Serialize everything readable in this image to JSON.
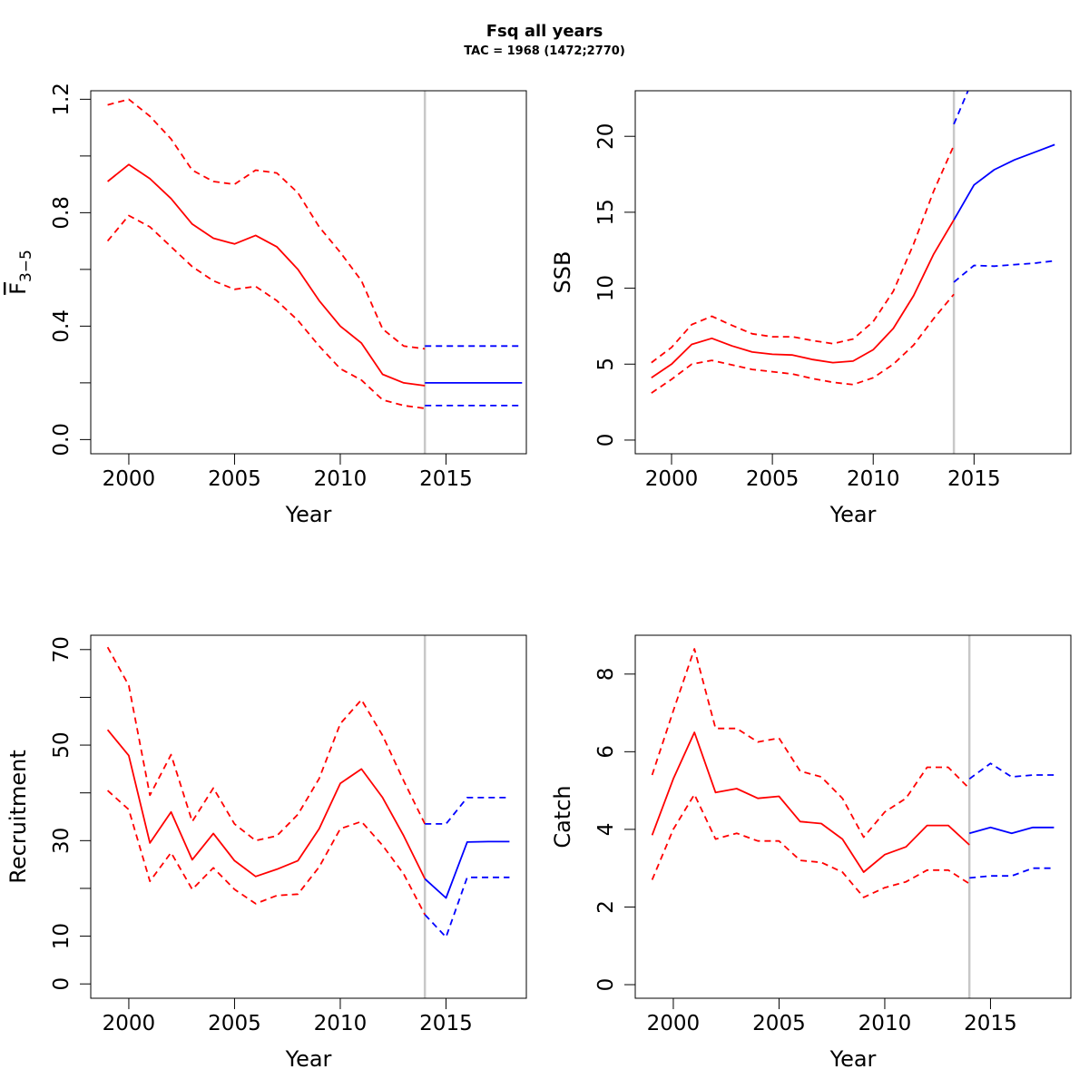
{
  "title": "Fsq all years",
  "subtitle": "TAC = 1968 (1472;2770)",
  "colors": {
    "estimate": "#ff0000",
    "forecast": "#0000ff",
    "divider": "#c8c8c8",
    "frame": "#000000"
  },
  "chart_data": [
    {
      "type": "line",
      "xlabel": "Year",
      "ylabel": "F",
      "ylabel_subscript": "3−5",
      "ylabel_overline": true,
      "xlim": [
        1998.2,
        2018.8
      ],
      "ylim": [
        -0.05,
        1.23
      ],
      "xticks": [
        2000,
        2005,
        2010,
        2015
      ],
      "yticks": [
        0.0,
        0.4,
        0.8,
        1.2
      ],
      "ytick_labels": [
        "0.0",
        "0.4",
        "0.8",
        "1.2"
      ],
      "ytick_minor": [
        0.2,
        0.6,
        1.0
      ],
      "divider_x": 2014,
      "grid": false,
      "series": [
        {
          "role": "estimate",
          "style": "solid",
          "x": [
            1999,
            2000,
            2001,
            2002,
            2003,
            2004,
            2005,
            2006,
            2007,
            2008,
            2009,
            2010,
            2011,
            2012,
            2013,
            2014
          ],
          "values": [
            0.91,
            0.97,
            0.92,
            0.85,
            0.76,
            0.71,
            0.69,
            0.72,
            0.68,
            0.6,
            0.49,
            0.4,
            0.34,
            0.23,
            0.2,
            0.19
          ]
        },
        {
          "role": "estimate",
          "style": "dashed",
          "x": [
            1999,
            2000,
            2001,
            2002,
            2003,
            2004,
            2005,
            2006,
            2007,
            2008,
            2009,
            2010,
            2011,
            2012,
            2013,
            2014
          ],
          "values": [
            1.18,
            1.2,
            1.14,
            1.06,
            0.95,
            0.91,
            0.9,
            0.95,
            0.94,
            0.87,
            0.75,
            0.66,
            0.56,
            0.39,
            0.33,
            0.32
          ]
        },
        {
          "role": "estimate",
          "style": "dashed",
          "x": [
            1999,
            2000,
            2001,
            2002,
            2003,
            2004,
            2005,
            2006,
            2007,
            2008,
            2009,
            2010,
            2011,
            2012,
            2013,
            2014
          ],
          "values": [
            0.7,
            0.79,
            0.75,
            0.68,
            0.61,
            0.56,
            0.53,
            0.54,
            0.49,
            0.42,
            0.33,
            0.25,
            0.21,
            0.14,
            0.12,
            0.11
          ]
        },
        {
          "role": "forecast",
          "style": "solid",
          "x": [
            2014,
            2018.6
          ],
          "values": [
            0.2,
            0.2
          ]
        },
        {
          "role": "forecast",
          "style": "dashed",
          "x": [
            2014,
            2018.6
          ],
          "values": [
            0.33,
            0.33
          ]
        },
        {
          "role": "forecast",
          "style": "dashed",
          "x": [
            2014,
            2018.6
          ],
          "values": [
            0.12,
            0.12
          ]
        }
      ]
    },
    {
      "type": "line",
      "xlabel": "Year",
      "ylabel": "SSB",
      "xlim": [
        1998.2,
        2019.8
      ],
      "ylim": [
        -0.9,
        23.0
      ],
      "xticks": [
        2000,
        2005,
        2010,
        2015
      ],
      "yticks": [
        0,
        5,
        10,
        15,
        20
      ],
      "ytick_labels": [
        "0",
        "5",
        "10",
        "15",
        "20"
      ],
      "ytick_minor": [],
      "divider_x": 2014,
      "grid": false,
      "series": [
        {
          "role": "estimate",
          "style": "solid",
          "x": [
            1999,
            2000,
            2001,
            2002,
            2003,
            2004,
            2005,
            2006,
            2007,
            2008,
            2009,
            2010,
            2011,
            2012,
            2013,
            2014
          ],
          "values": [
            4.1,
            5.0,
            6.3,
            6.7,
            6.2,
            5.8,
            5.65,
            5.6,
            5.3,
            5.1,
            5.2,
            5.95,
            7.35,
            9.5,
            12.25,
            14.5
          ]
        },
        {
          "role": "estimate",
          "style": "dashed",
          "x": [
            1999,
            2000,
            2001,
            2002,
            2003,
            2004,
            2005,
            2006,
            2007,
            2008,
            2009,
            2010,
            2011,
            2012,
            2013,
            2014
          ],
          "values": [
            5.1,
            6.1,
            7.6,
            8.15,
            7.55,
            7.0,
            6.8,
            6.8,
            6.55,
            6.35,
            6.65,
            7.8,
            9.8,
            12.9,
            16.4,
            19.4
          ]
        },
        {
          "role": "estimate",
          "style": "dashed",
          "x": [
            1999,
            2000,
            2001,
            2002,
            2003,
            2004,
            2005,
            2006,
            2007,
            2008,
            2009,
            2010,
            2011,
            2012,
            2013,
            2014
          ],
          "values": [
            3.1,
            4.0,
            5.0,
            5.25,
            4.95,
            4.65,
            4.5,
            4.35,
            4.05,
            3.8,
            3.65,
            4.1,
            5.0,
            6.25,
            8.0,
            9.6
          ]
        },
        {
          "role": "forecast",
          "style": "solid",
          "x": [
            2014,
            2015,
            2016,
            2017,
            2018,
            2019
          ],
          "values": [
            14.5,
            16.8,
            17.8,
            18.45,
            18.95,
            19.45
          ]
        },
        {
          "role": "forecast",
          "style": "dashed",
          "x": [
            2014,
            2014.7
          ],
          "values": [
            20.8,
            23.0
          ]
        },
        {
          "role": "forecast",
          "style": "dashed",
          "x": [
            2014,
            2015,
            2016,
            2017,
            2018,
            2019
          ],
          "values": [
            10.4,
            11.5,
            11.45,
            11.55,
            11.65,
            11.8
          ]
        }
      ]
    },
    {
      "type": "line",
      "xlabel": "Year",
      "ylabel": "Recruitment",
      "xlim": [
        1998.2,
        2018.8
      ],
      "ylim": [
        -3.0,
        73.0
      ],
      "xticks": [
        2000,
        2005,
        2010,
        2015
      ],
      "yticks": [
        0,
        10,
        30,
        50,
        70
      ],
      "ytick_labels": [
        "0",
        "10",
        "30",
        "50",
        "70"
      ],
      "ytick_minor": [
        20,
        40,
        60
      ],
      "divider_x": 2014,
      "grid": false,
      "series": [
        {
          "role": "estimate",
          "style": "solid",
          "x": [
            1999,
            2000,
            2001,
            2002,
            2003,
            2004,
            2005,
            2006,
            2007,
            2008,
            2009,
            2010,
            2011,
            2012,
            2013,
            2014
          ],
          "values": [
            53.2,
            47.8,
            29.5,
            36.0,
            26.0,
            31.5,
            25.8,
            22.5,
            24.0,
            25.8,
            32.5,
            42.0,
            45.0,
            39.0,
            31.0,
            22.0
          ]
        },
        {
          "role": "estimate",
          "style": "dashed",
          "x": [
            1999,
            2000,
            2001,
            2002,
            2003,
            2004,
            2005,
            2006,
            2007,
            2008,
            2009,
            2010,
            2011,
            2012,
            2013,
            2014
          ],
          "values": [
            70.5,
            62.5,
            39.5,
            48.0,
            34.0,
            41.0,
            33.5,
            30.0,
            31.0,
            35.5,
            43.0,
            54.5,
            59.5,
            52.0,
            42.5,
            33.5
          ]
        },
        {
          "role": "estimate",
          "style": "dashed",
          "x": [
            1999,
            2000,
            2001,
            2002,
            2003,
            2004,
            2005,
            2006,
            2007,
            2008,
            2009,
            2010,
            2011,
            2012,
            2013,
            2014
          ],
          "values": [
            40.5,
            36.5,
            21.5,
            27.5,
            19.8,
            24.3,
            19.8,
            16.8,
            18.5,
            18.8,
            24.5,
            32.5,
            34.0,
            29.0,
            23.0,
            14.5
          ]
        },
        {
          "role": "forecast",
          "style": "solid",
          "x": [
            2014,
            2015,
            2016,
            2017,
            2018
          ],
          "values": [
            22.0,
            18.0,
            29.7,
            29.8,
            29.8
          ]
        },
        {
          "role": "forecast",
          "style": "dashed",
          "x": [
            2014,
            2015,
            2016,
            2017,
            2018
          ],
          "values": [
            33.5,
            33.5,
            39.0,
            39.0,
            39.0
          ]
        },
        {
          "role": "forecast",
          "style": "dashed",
          "x": [
            2014,
            2015,
            2016,
            2017,
            2018
          ],
          "values": [
            14.5,
            9.8,
            22.3,
            22.3,
            22.3
          ]
        }
      ]
    },
    {
      "type": "line",
      "xlabel": "Year",
      "ylabel": "Catch",
      "xlim": [
        1998.2,
        2018.8
      ],
      "ylim": [
        -0.35,
        9.0
      ],
      "xticks": [
        2000,
        2005,
        2010,
        2015
      ],
      "yticks": [
        0,
        2,
        4,
        6,
        8
      ],
      "ytick_labels": [
        "0",
        "2",
        "4",
        "6",
        "8"
      ],
      "ytick_minor": [],
      "divider_x": 2014,
      "grid": false,
      "series": [
        {
          "role": "estimate",
          "style": "solid",
          "x": [
            1999,
            2000,
            2001,
            2002,
            2003,
            2004,
            2005,
            2006,
            2007,
            2008,
            2009,
            2010,
            2011,
            2012,
            2013,
            2014
          ],
          "values": [
            3.85,
            5.3,
            6.5,
            4.95,
            5.05,
            4.8,
            4.85,
            4.2,
            4.15,
            3.75,
            2.9,
            3.35,
            3.55,
            4.1,
            4.1,
            3.6
          ]
        },
        {
          "role": "estimate",
          "style": "dashed",
          "x": [
            1999,
            2000,
            2001,
            2002,
            2003,
            2004,
            2005,
            2006,
            2007,
            2008,
            2009,
            2010,
            2011,
            2012,
            2013,
            2014
          ],
          "values": [
            5.4,
            7.05,
            8.65,
            6.6,
            6.6,
            6.25,
            6.35,
            5.5,
            5.35,
            4.8,
            3.8,
            4.45,
            4.8,
            5.6,
            5.6,
            5.05
          ]
        },
        {
          "role": "estimate",
          "style": "dashed",
          "x": [
            1999,
            2000,
            2001,
            2002,
            2003,
            2004,
            2005,
            2006,
            2007,
            2008,
            2009,
            2010,
            2011,
            2012,
            2013,
            2014
          ],
          "values": [
            2.7,
            4.0,
            4.9,
            3.75,
            3.9,
            3.7,
            3.7,
            3.2,
            3.15,
            2.9,
            2.25,
            2.5,
            2.65,
            2.95,
            2.95,
            2.6
          ]
        },
        {
          "role": "forecast",
          "style": "solid",
          "x": [
            2014,
            2015,
            2016,
            2017,
            2018
          ],
          "values": [
            3.9,
            4.05,
            3.9,
            4.05,
            4.05
          ]
        },
        {
          "role": "forecast",
          "style": "dashed",
          "x": [
            2014,
            2015,
            2016,
            2017,
            2018
          ],
          "values": [
            5.3,
            5.7,
            5.35,
            5.4,
            5.4
          ]
        },
        {
          "role": "forecast",
          "style": "dashed",
          "x": [
            2014,
            2015,
            2016,
            2017,
            2018
          ],
          "values": [
            2.75,
            2.8,
            2.8,
            3.0,
            3.0
          ]
        }
      ]
    }
  ]
}
